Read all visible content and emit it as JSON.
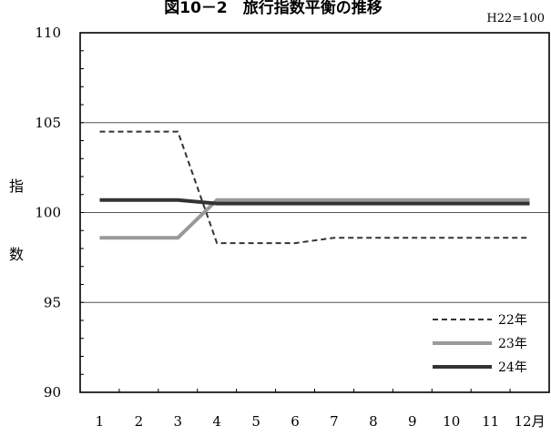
{
  "chart_data": {
    "type": "line",
    "title": "図10－2　旅行指数平衡の推移",
    "note": "H22=100",
    "ylabel": [
      "指",
      "数"
    ],
    "ylim": [
      90,
      110
    ],
    "yticks": [
      90,
      95,
      100,
      105,
      110
    ],
    "gridlines": [
      95,
      100,
      105
    ],
    "categories": [
      "1",
      "2",
      "3",
      "4",
      "5",
      "6",
      "7",
      "8",
      "9",
      "10",
      "11",
      "12月"
    ],
    "legend_position": "bottom-right",
    "series": [
      {
        "name": "22年",
        "color": "#333333",
        "style": "dashed",
        "values": [
          104.5,
          104.5,
          104.5,
          98.3,
          98.3,
          98.3,
          98.6,
          98.6,
          98.6,
          98.6,
          98.6,
          98.6
        ]
      },
      {
        "name": "23年",
        "color": "#999999",
        "style": "solid",
        "values": [
          98.6,
          98.6,
          98.6,
          100.7,
          100.7,
          100.7,
          100.7,
          100.7,
          100.7,
          100.7,
          100.7,
          100.7
        ]
      },
      {
        "name": "24年",
        "color": "#333333",
        "style": "solid",
        "values": [
          100.7,
          100.7,
          100.7,
          100.5,
          100.5,
          100.5,
          100.5,
          100.5,
          100.5,
          100.5,
          100.5,
          100.5
        ]
      }
    ]
  }
}
